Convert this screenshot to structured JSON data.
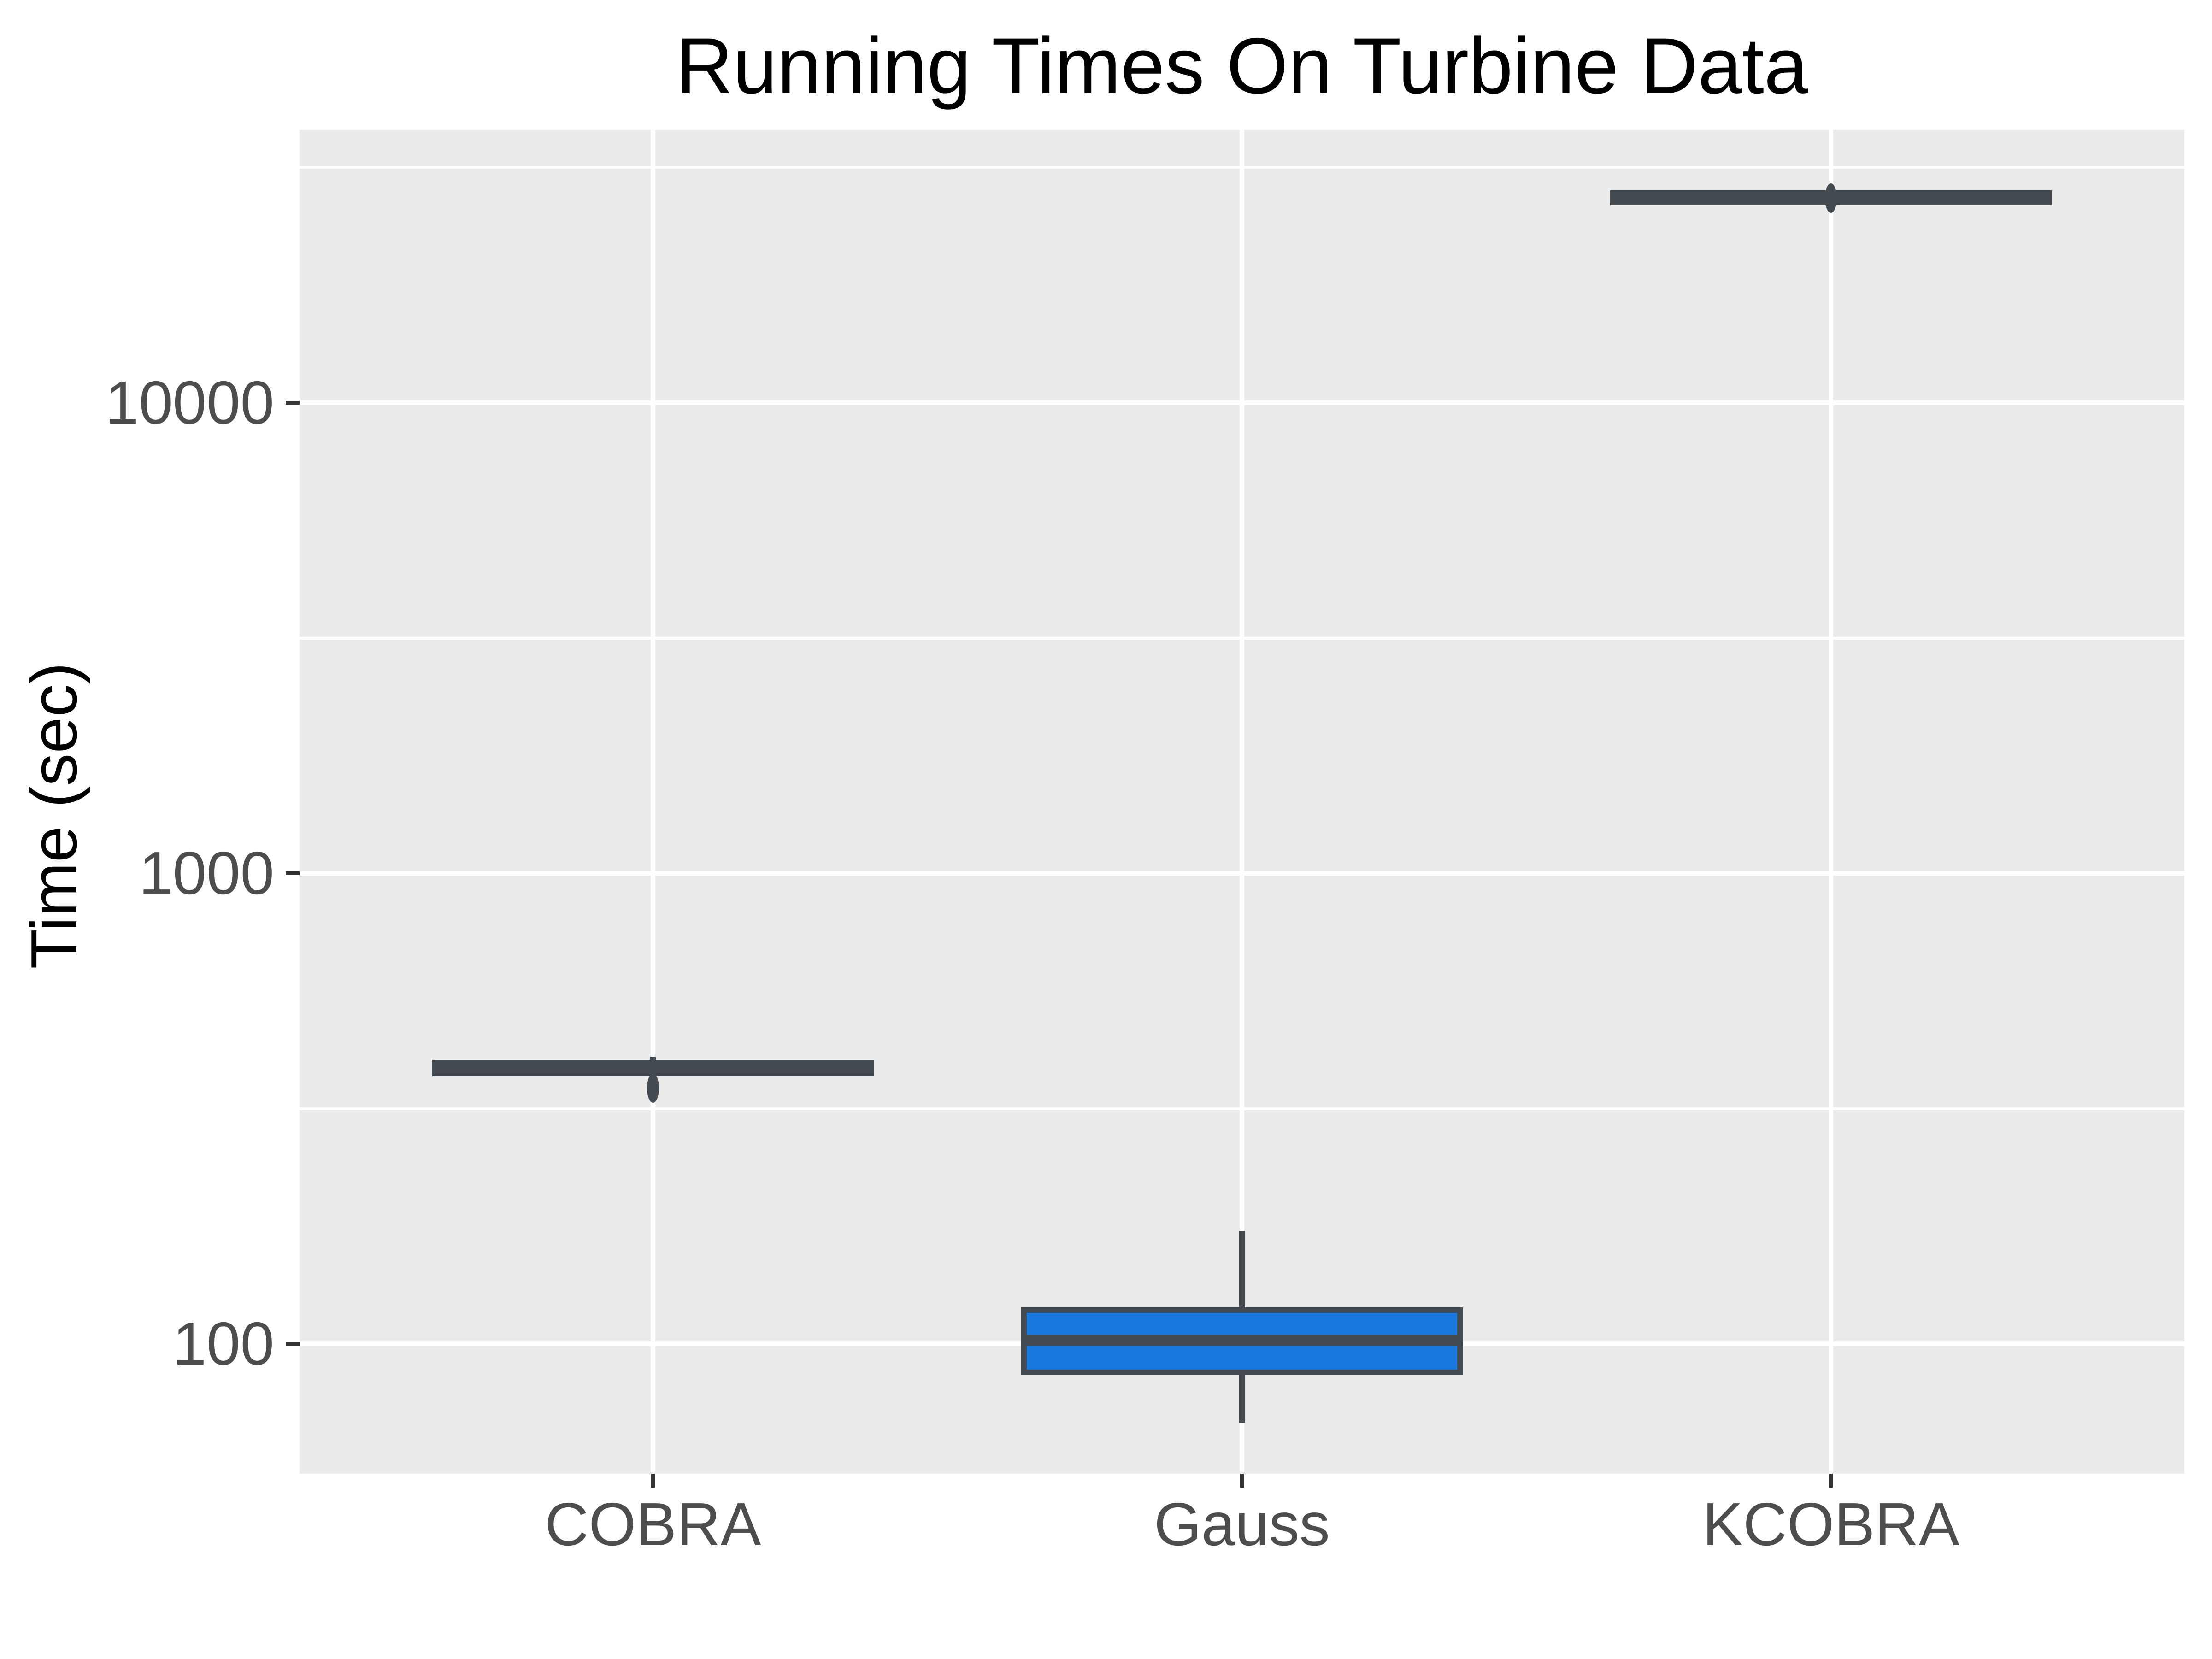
{
  "chart": {
    "title": "Running Times On Turbine Data",
    "ylabel": "Time (sec)"
  },
  "chart_data": {
    "type": "boxplot",
    "title": "Running Times On Turbine Data",
    "xlabel": "",
    "ylabel": "Time (sec)",
    "categories": [
      "COBRA",
      "Gauss",
      "KCOBRA"
    ],
    "series": [
      {
        "name": "COBRA",
        "whisker_low": 376,
        "q1": 376,
        "median": 386,
        "q3": 396,
        "whisker_high": 408,
        "outliers": [
          350
        ]
      },
      {
        "name": "Gauss",
        "whisker_low": 68,
        "q1": 87,
        "median": 102,
        "q3": 118,
        "whisker_high": 174,
        "outliers": []
      },
      {
        "name": "KCOBRA",
        "whisker_low": 26700,
        "q1": 26700,
        "median": 27300,
        "q3": 27900,
        "whisker_high": 27900,
        "outliers": [
          27200
        ]
      }
    ],
    "yscale": "log10",
    "ylim": [
      53,
      38000
    ],
    "yticks": [
      {
        "value": 100,
        "label": "100"
      },
      {
        "value": 1000,
        "label": "1000"
      },
      {
        "value": 10000,
        "label": "10000"
      }
    ],
    "yticks_minor": [
      316.23,
      3162.28,
      31622.78
    ],
    "grid": true,
    "legend": false,
    "colors": {
      "box_fill": "#1878DE",
      "box_stroke": "#434A50",
      "panel_bg": "#EBEBEB",
      "grid": "#FFFFFF",
      "tick": "#333333",
      "axis_text": "#4D4D4D",
      "title_text": "#000000"
    }
  }
}
